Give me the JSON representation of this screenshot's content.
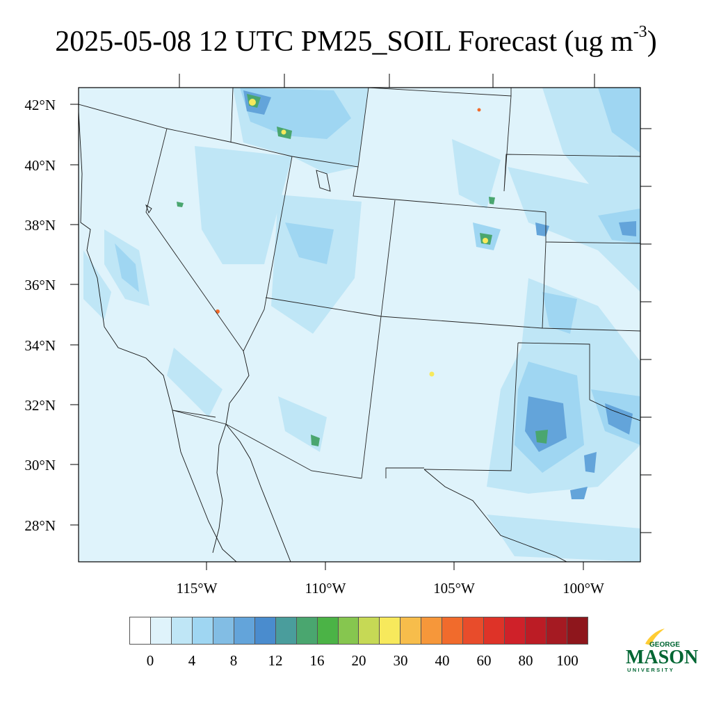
{
  "title": {
    "main": "2025-05-08 12 UTC PM25_SOIL Forecast (ug m",
    "superscript": "-3",
    "tail": ")"
  },
  "map": {
    "lat_labels": [
      "42°N",
      "40°N",
      "38°N",
      "36°N",
      "34°N",
      "32°N",
      "30°N",
      "28°N"
    ],
    "lon_labels": [
      "115°W",
      "110°W",
      "105°W",
      "100°W"
    ],
    "background_color": "#dff3fb"
  },
  "colorbar": {
    "colors": [
      "#ffffff",
      "#dff3fb",
      "#bfe6f6",
      "#9fd6f2",
      "#82bde4",
      "#63a4da",
      "#4a8cce",
      "#4a9d9c",
      "#4aa66f",
      "#4bb346",
      "#86c64f",
      "#c6d955",
      "#f7e95c",
      "#f7bd4b",
      "#f6973a",
      "#f16b2c",
      "#e84c2b",
      "#de3328",
      "#cf2129",
      "#bc1c25",
      "#a51a22",
      "#8e161c"
    ],
    "labels": [
      "0",
      "4",
      "8",
      "12",
      "16",
      "20",
      "30",
      "40",
      "60",
      "80",
      "100"
    ]
  },
  "logo": {
    "line1": "GEORGE",
    "line2": "MASON",
    "line3": "UNIVERSITY",
    "green": "#006633",
    "gold": "#ffcc33"
  }
}
